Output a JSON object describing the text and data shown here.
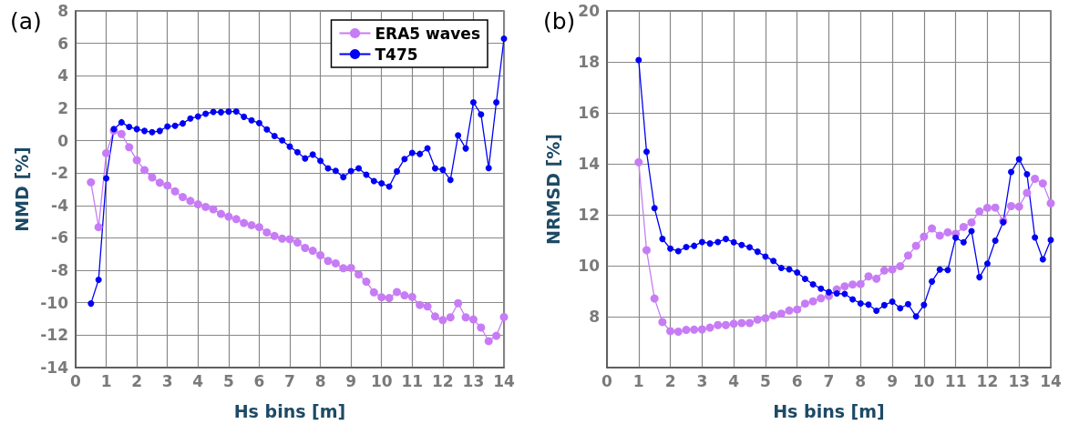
{
  "chart_data": [
    {
      "type": "line",
      "title": "(a)",
      "xlabel": "Hs bins [m]",
      "ylabel": "NMD [%]",
      "xlim": [
        0,
        14
      ],
      "xticks": [
        0,
        1,
        2,
        3,
        4,
        5,
        6,
        7,
        8,
        9,
        10,
        11,
        12,
        13,
        14
      ],
      "ylim": [
        -14,
        8
      ],
      "yticks": [
        -14,
        -12,
        -10,
        -8,
        -6,
        -4,
        -2,
        0,
        2,
        4,
        6,
        8
      ],
      "grid": true,
      "legend": "top right",
      "marker": "circle",
      "line_style": "solid",
      "series": [
        {
          "name": "ERA5 waves",
          "color": "#c77cf5",
          "x": [
            0.5,
            0.75,
            1,
            1.25,
            1.5,
            1.75,
            2,
            2.25,
            2.5,
            2.75,
            3,
            3.25,
            3.5,
            3.75,
            4,
            4.25,
            4.5,
            4.75,
            5,
            5.25,
            5.5,
            5.75,
            6,
            6.25,
            6.5,
            6.75,
            7,
            7.25,
            7.5,
            7.75,
            8,
            8.25,
            8.5,
            8.75,
            9,
            9.25,
            9.5,
            9.75,
            10,
            10.25,
            10.5,
            10.75,
            11,
            11.25,
            11.5,
            11.75,
            12,
            12.25,
            12.5,
            12.75,
            13,
            13.25,
            13.5,
            13.75,
            14
          ],
          "values": [
            -2.57,
            -5.34,
            -0.78,
            0.61,
            0.41,
            -0.41,
            -1.21,
            -1.82,
            -2.27,
            -2.6,
            -2.77,
            -3.13,
            -3.48,
            -3.72,
            -3.93,
            -4.09,
            -4.24,
            -4.52,
            -4.69,
            -4.84,
            -5.08,
            -5.21,
            -5.34,
            -5.66,
            -5.88,
            -6.05,
            -6.08,
            -6.29,
            -6.62,
            -6.79,
            -7.07,
            -7.42,
            -7.57,
            -7.87,
            -7.85,
            -8.26,
            -8.7,
            -9.36,
            -9.66,
            -9.71,
            -9.34,
            -9.54,
            -9.64,
            -10.14,
            -10.23,
            -10.85,
            -11.07,
            -10.9,
            -10.03,
            -10.9,
            -11.03,
            -11.53,
            -12.37,
            -12.04,
            -10.88
          ]
        },
        {
          "name": "T475",
          "color": "#0000f5",
          "x": [
            0.5,
            0.75,
            1,
            1.25,
            1.5,
            1.75,
            2,
            2.25,
            2.5,
            2.75,
            3,
            3.25,
            3.5,
            3.75,
            4,
            4.25,
            4.5,
            4.75,
            5,
            5.25,
            5.5,
            5.75,
            6,
            6.25,
            6.5,
            6.75,
            7,
            7.25,
            7.5,
            7.75,
            8,
            8.25,
            8.5,
            8.75,
            9,
            9.25,
            9.5,
            9.75,
            10,
            10.25,
            10.5,
            10.75,
            11,
            11.25,
            11.5,
            11.75,
            12,
            12.25,
            12.5,
            12.75,
            13,
            13.25,
            13.5,
            13.75,
            14
          ],
          "values": [
            -10.05,
            -8.58,
            -2.33,
            0.71,
            1.13,
            0.84,
            0.71,
            0.6,
            0.52,
            0.6,
            0.87,
            0.91,
            1.06,
            1.36,
            1.49,
            1.66,
            1.77,
            1.75,
            1.79,
            1.8,
            1.47,
            1.25,
            1.08,
            0.69,
            0.28,
            0.02,
            -0.37,
            -0.71,
            -1.1,
            -0.86,
            -1.25,
            -1.71,
            -1.86,
            -2.25,
            -1.88,
            -1.71,
            -2.1,
            -2.49,
            -2.64,
            -2.83,
            -1.9,
            -1.13,
            -0.76,
            -0.82,
            -0.47,
            -1.71,
            -1.8,
            -2.42,
            0.32,
            -0.48,
            2.36,
            1.62,
            -1.69,
            2.36,
            6.29
          ]
        }
      ]
    },
    {
      "type": "line",
      "title": "(b)",
      "xlabel": "Hs bins [m]",
      "ylabel": "NRMSD [%]",
      "xlim": [
        0,
        14
      ],
      "xticks": [
        0,
        1,
        2,
        3,
        4,
        5,
        6,
        7,
        8,
        9,
        10,
        11,
        12,
        13,
        14
      ],
      "ylim": [
        6,
        20
      ],
      "yticks": [
        8,
        10,
        12,
        14,
        16,
        18,
        20
      ],
      "grid": true,
      "marker": "circle",
      "line_style": "solid",
      "series": [
        {
          "color": "#c77cf5",
          "x": [
            1,
            1.25,
            1.5,
            1.75,
            2,
            2.25,
            2.5,
            2.75,
            3,
            3.25,
            3.5,
            3.75,
            4,
            4.25,
            4.5,
            4.75,
            5,
            5.25,
            5.5,
            5.75,
            6,
            6.25,
            6.5,
            6.75,
            7,
            7.25,
            7.5,
            7.75,
            8,
            8.25,
            8.5,
            8.75,
            9,
            9.25,
            9.5,
            9.75,
            10,
            10.25,
            10.5,
            10.75,
            11,
            11.25,
            11.5,
            11.75,
            12,
            12.25,
            12.5,
            12.75,
            13,
            13.25,
            13.5,
            13.75,
            14
          ],
          "values": [
            14.06,
            10.61,
            8.71,
            7.79,
            7.43,
            7.41,
            7.48,
            7.49,
            7.5,
            7.57,
            7.67,
            7.67,
            7.72,
            7.75,
            7.75,
            7.88,
            7.94,
            8.05,
            8.12,
            8.24,
            8.28,
            8.51,
            8.6,
            8.72,
            8.81,
            9.07,
            9.19,
            9.26,
            9.28,
            9.58,
            9.49,
            9.81,
            9.85,
            9.98,
            10.4,
            10.78,
            11.14,
            11.46,
            11.18,
            11.31,
            11.25,
            11.52,
            11.7,
            12.13,
            12.27,
            12.28,
            11.75,
            12.34,
            12.32,
            12.86,
            13.41,
            13.23,
            12.45
          ]
        },
        {
          "color": "#0000f5",
          "x": [
            1,
            1.25,
            1.5,
            1.75,
            2,
            2.25,
            2.5,
            2.75,
            3,
            3.25,
            3.5,
            3.75,
            4,
            4.25,
            4.5,
            4.75,
            5,
            5.25,
            5.5,
            5.75,
            6,
            6.25,
            6.5,
            6.75,
            7,
            7.25,
            7.5,
            7.75,
            8,
            8.25,
            8.5,
            8.75,
            9,
            9.25,
            9.5,
            9.75,
            10,
            10.25,
            10.5,
            10.75,
            11,
            11.25,
            11.5,
            11.75,
            12,
            12.25,
            12.5,
            12.75,
            13,
            13.25,
            13.5,
            13.75,
            14
          ],
          "values": [
            18.07,
            14.47,
            12.26,
            11.05,
            10.67,
            10.57,
            10.73,
            10.78,
            10.93,
            10.87,
            10.93,
            11.05,
            10.92,
            10.81,
            10.72,
            10.55,
            10.36,
            10.19,
            9.91,
            9.86,
            9.73,
            9.48,
            9.27,
            9.1,
            8.96,
            8.91,
            8.89,
            8.68,
            8.52,
            8.47,
            8.23,
            8.45,
            8.59,
            8.33,
            8.49,
            8.01,
            8.46,
            9.38,
            9.85,
            9.83,
            11.1,
            10.92,
            11.36,
            9.55,
            10.08,
            10.98,
            11.71,
            13.68,
            14.18,
            13.59,
            11.11,
            10.25,
            11.01
          ]
        }
      ]
    }
  ]
}
